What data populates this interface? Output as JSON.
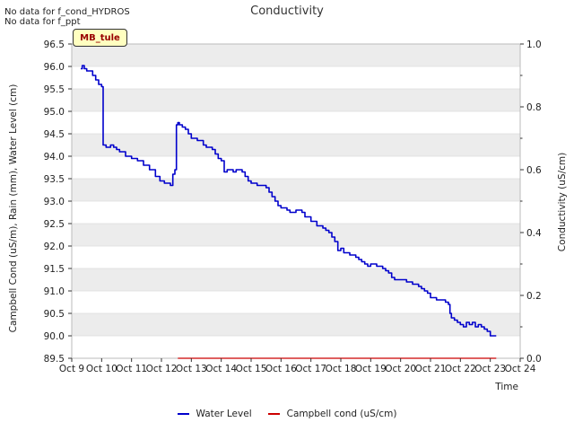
{
  "notes": [
    "No data for f_cond_HYDROS",
    "No data for f_ppt"
  ],
  "badge": "MB_tule",
  "legend": {
    "water_level": "Water Level",
    "campbell": "Campbell cond (uS/cm)"
  },
  "colors": {
    "water_level": "#0000cc",
    "campbell": "#cc0000",
    "band": "#ececec",
    "badge_bg": "#ffffc0",
    "badge_text": "#990000"
  },
  "chart_data": {
    "type": "line",
    "title": "Conductivity",
    "xlabel": "Time",
    "ylabel_left": "Campbell Cond (uS/m), Rain (mm), Water Level (cm)",
    "ylabel_right": "Conductivity (uS/cm)",
    "xlim": [
      9,
      24
    ],
    "ylim": [
      89.5,
      96.5
    ],
    "ylim_right": [
      0.0,
      1.0
    ],
    "x_ticks": [
      9,
      10,
      11,
      12,
      13,
      14,
      15,
      16,
      17,
      18,
      19,
      20,
      21,
      22,
      23,
      24
    ],
    "x_tick_labels": [
      "Oct 9",
      "Oct 10",
      "Oct 11",
      "Oct 12",
      "Oct 13",
      "Oct 14",
      "Oct 15",
      "Oct 16",
      "Oct 17",
      "Oct 18",
      "Oct 19",
      "Oct 20",
      "Oct 21",
      "Oct 22",
      "Oct 23",
      "Oct 24"
    ],
    "y_ticks": [
      89.5,
      90.0,
      90.5,
      91.0,
      91.5,
      92.0,
      92.5,
      93.0,
      93.5,
      94.0,
      94.5,
      95.0,
      95.5,
      96.0,
      96.5
    ],
    "y_tick_labels": [
      "89.5",
      "90.0",
      "90.5",
      "91.0",
      "91.5",
      "92.0",
      "92.5",
      "93.0",
      "93.5",
      "94.0",
      "94.5",
      "95.0",
      "95.5",
      "96.0",
      "96.5"
    ],
    "y_right_ticks": [
      0.0,
      0.2,
      0.4,
      0.6,
      0.8,
      1.0
    ],
    "y_right_tick_labels": [
      "0.0",
      "0.2",
      "0.4",
      "0.6",
      "0.8",
      "1.0"
    ],
    "series": [
      {
        "name": "Water Level",
        "color": "#0000cc",
        "axis": "left",
        "x": [
          9.3,
          9.35,
          9.42,
          9.5,
          9.6,
          9.7,
          9.8,
          9.9,
          10.0,
          10.05,
          10.15,
          10.3,
          10.4,
          10.5,
          10.6,
          10.8,
          11.0,
          11.2,
          11.4,
          11.6,
          11.8,
          11.95,
          12.1,
          12.3,
          12.38,
          12.45,
          12.5,
          12.55,
          12.6,
          12.7,
          12.8,
          12.9,
          13.0,
          13.2,
          13.4,
          13.5,
          13.6,
          13.7,
          13.8,
          13.9,
          14.0,
          14.1,
          14.2,
          14.3,
          14.4,
          14.5,
          14.6,
          14.7,
          14.8,
          14.9,
          15.0,
          15.2,
          15.4,
          15.5,
          15.6,
          15.7,
          15.8,
          15.9,
          16.0,
          16.2,
          16.3,
          16.5,
          16.6,
          16.7,
          16.8,
          17.0,
          17.2,
          17.4,
          17.5,
          17.6,
          17.7,
          17.8,
          17.9,
          18.0,
          18.1,
          18.3,
          18.5,
          18.6,
          18.7,
          18.8,
          18.9,
          19.0,
          19.2,
          19.4,
          19.5,
          19.6,
          19.7,
          19.8,
          20.0,
          20.2,
          20.4,
          20.6,
          20.7,
          20.8,
          20.9,
          21.0,
          21.2,
          21.4,
          21.5,
          21.6,
          21.65,
          21.7,
          21.8,
          21.9,
          22.0,
          22.1,
          22.2,
          22.3,
          22.4,
          22.5,
          22.6,
          22.7,
          22.8,
          22.9,
          23.0,
          23.2
        ],
        "y": [
          95.95,
          96.02,
          95.95,
          95.9,
          95.9,
          95.8,
          95.7,
          95.6,
          95.55,
          94.25,
          94.2,
          94.25,
          94.2,
          94.15,
          94.1,
          94.0,
          93.95,
          93.9,
          93.8,
          93.7,
          93.55,
          93.45,
          93.4,
          93.35,
          93.6,
          93.7,
          94.7,
          94.75,
          94.7,
          94.65,
          94.6,
          94.5,
          94.4,
          94.35,
          94.25,
          94.2,
          94.2,
          94.15,
          94.05,
          93.95,
          93.9,
          93.65,
          93.7,
          93.7,
          93.65,
          93.7,
          93.7,
          93.65,
          93.55,
          93.45,
          93.4,
          93.35,
          93.35,
          93.3,
          93.2,
          93.1,
          93.0,
          92.9,
          92.85,
          92.8,
          92.75,
          92.8,
          92.8,
          92.75,
          92.65,
          92.55,
          92.45,
          92.4,
          92.35,
          92.3,
          92.2,
          92.1,
          91.9,
          91.95,
          91.85,
          91.8,
          91.75,
          91.7,
          91.65,
          91.6,
          91.55,
          91.6,
          91.55,
          91.5,
          91.45,
          91.4,
          91.3,
          91.25,
          91.25,
          91.2,
          91.15,
          91.1,
          91.05,
          91.0,
          90.95,
          90.85,
          90.8,
          90.8,
          90.75,
          90.7,
          90.5,
          90.4,
          90.35,
          90.3,
          90.25,
          90.2,
          90.3,
          90.25,
          90.3,
          90.2,
          90.25,
          90.2,
          90.15,
          90.1,
          90.0,
          90.0
        ]
      },
      {
        "name": "Campbell cond (uS/cm)",
        "color": "#cc0000",
        "axis": "right",
        "x": [
          12.55,
          23.2
        ],
        "y": [
          0.0,
          0.0
        ]
      }
    ]
  }
}
